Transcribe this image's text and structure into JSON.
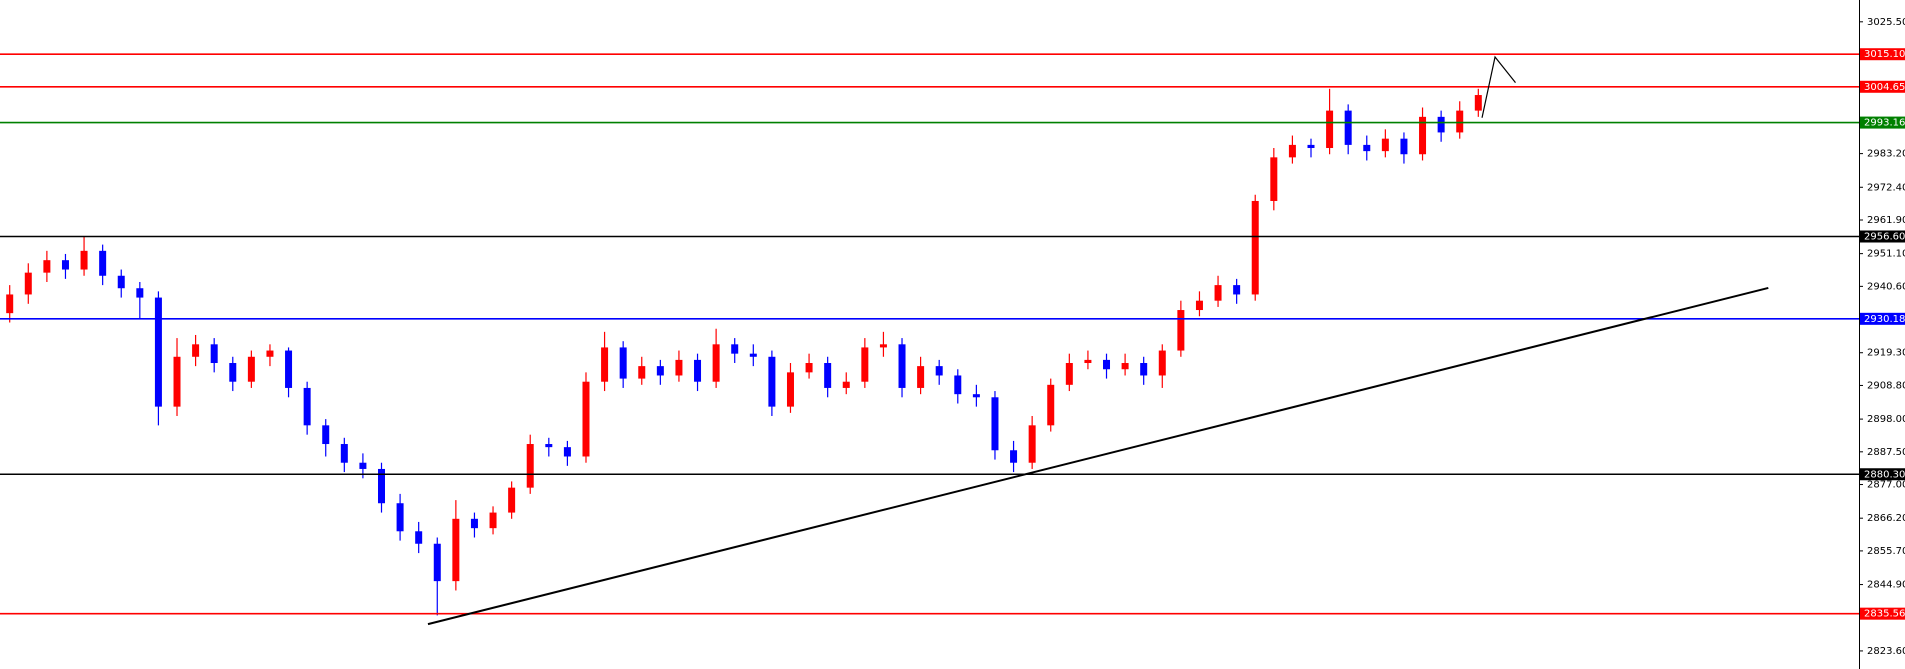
{
  "chart_data": {
    "type": "candlestick",
    "up_color": "#ff0000",
    "down_color": "#0000ff",
    "ylim": [
      2817.8,
      3032.5
    ],
    "yticks": [
      {
        "value": 3025.5,
        "label": "3025.50"
      },
      {
        "value": 2983.2,
        "label": "2983.20"
      },
      {
        "value": 2972.4,
        "label": "2972.40"
      },
      {
        "value": 2961.9,
        "label": "2961.90"
      },
      {
        "value": 2951.1,
        "label": "2951.10"
      },
      {
        "value": 2940.6,
        "label": "2940.60"
      },
      {
        "value": 2919.3,
        "label": "2919.30"
      },
      {
        "value": 2908.8,
        "label": "2908.80"
      },
      {
        "value": 2898,
        "label": "2898.00"
      },
      {
        "value": 2887.5,
        "label": "2887.50"
      },
      {
        "value": 2877,
        "label": "2877.00"
      },
      {
        "value": 2866.2,
        "label": "2866.20"
      },
      {
        "value": 2855.7,
        "label": "2855.70"
      },
      {
        "value": 2844.9,
        "label": "2844.90"
      },
      {
        "value": 2823.6,
        "label": "2823.60"
      }
    ],
    "levels": [
      {
        "value": 3015.1,
        "label": "3015.10",
        "color": "#ff0000"
      },
      {
        "value": 3004.65,
        "label": "3004.65",
        "color": "#ff0000"
      },
      {
        "value": 2993.16,
        "label": "2993.16",
        "color": "#008000"
      },
      {
        "value": 2956.6,
        "label": "2956.60",
        "color": "#000000"
      },
      {
        "value": 2930.18,
        "label": "2930.18",
        "color": "#0000ff"
      },
      {
        "value": 2880.3,
        "label": "2880.30",
        "color": "#000000"
      },
      {
        "value": 2835.56,
        "label": "2835.56",
        "color": "#ff0000"
      }
    ],
    "open": [
      2932,
      2938,
      2945,
      2949,
      2946,
      2952,
      2944,
      2940,
      2937,
      2902,
      2918,
      2922,
      2916,
      2910,
      2918,
      2920,
      2908,
      2896,
      2890,
      2884,
      2882,
      2871,
      2862,
      2858,
      2846,
      2866,
      2863,
      2868,
      2876,
      2890,
      2889,
      2886,
      2910,
      2921,
      2911,
      2915,
      2912,
      2917,
      2910,
      2922,
      2919,
      2918,
      2902,
      2913,
      2916,
      2908,
      2910,
      2921,
      2922,
      2908,
      2915,
      2912,
      2906,
      2905,
      2888,
      2884,
      2896,
      2909,
      2916,
      2917,
      2914,
      2916,
      2912,
      2920,
      2933,
      2936,
      2941,
      2938,
      2968,
      2982,
      2986,
      2985,
      2997,
      2986,
      2984,
      2988,
      2983,
      2995,
      2990,
      2997
    ],
    "high": [
      2941,
      2948,
      2952,
      2951,
      2956.6,
      2954,
      2946,
      2942,
      2939,
      2924,
      2925,
      2924,
      2918,
      2920,
      2922,
      2921,
      2910,
      2898,
      2892,
      2887,
      2884,
      2874,
      2865,
      2860,
      2872,
      2868,
      2870,
      2878,
      2893,
      2892,
      2891,
      2913,
      2926,
      2923,
      2918,
      2917,
      2920,
      2919,
      2927,
      2924,
      2922,
      2920,
      2916,
      2919,
      2918,
      2913,
      2924,
      2926,
      2924,
      2918,
      2917,
      2914,
      2909,
      2907,
      2891,
      2899,
      2911,
      2919,
      2920,
      2919,
      2919,
      2918,
      2922,
      2936,
      2939,
      2944,
      2943,
      2970,
      2985,
      2989,
      2988,
      3004,
      2999,
      2989,
      2991,
      2990,
      2998,
      2997,
      3000,
      3004
    ],
    "low": [
      2929,
      2935,
      2942,
      2943,
      2944,
      2941,
      2937,
      2930,
      2896,
      2899,
      2915,
      2913,
      2907,
      2908,
      2915,
      2905,
      2893,
      2886,
      2881,
      2879,
      2868,
      2859,
      2855,
      2835,
      2843,
      2860,
      2861,
      2866,
      2874,
      2886,
      2883,
      2884,
      2907,
      2908,
      2909,
      2909,
      2910,
      2907,
      2908,
      2916,
      2915,
      2899,
      2900,
      2911,
      2905,
      2906,
      2908,
      2918,
      2905,
      2906,
      2909,
      2903,
      2902,
      2885,
      2881,
      2882,
      2894,
      2907,
      2914,
      2911,
      2912,
      2909,
      2908,
      2918,
      2931,
      2934,
      2935,
      2936,
      2965,
      2980,
      2982,
      2983,
      2983,
      2981,
      2982,
      2980,
      2981,
      2987,
      2988,
      2995
    ],
    "close": [
      2938,
      2945,
      2949,
      2946,
      2952,
      2944,
      2940,
      2937,
      2902,
      2918,
      2922,
      2916,
      2910,
      2918,
      2920,
      2908,
      2896,
      2890,
      2884,
      2882,
      2871,
      2862,
      2858,
      2846,
      2866,
      2863,
      2868,
      2876,
      2890,
      2889,
      2886,
      2910,
      2921,
      2911,
      2915,
      2912,
      2917,
      2910,
      2922,
      2919,
      2918,
      2902,
      2913,
      2916,
      2908,
      2910,
      2921,
      2922,
      2908,
      2915,
      2912,
      2906,
      2905,
      2888,
      2884,
      2896,
      2909,
      2916,
      2917,
      2914,
      2916,
      2912,
      2920,
      2933,
      2936,
      2941,
      2938,
      2968,
      2982,
      2986,
      2985,
      2997,
      2986,
      2984,
      2988,
      2983,
      2995,
      2990,
      2997,
      3002
    ],
    "trendline": {
      "x": [
        22.5,
        94.6
      ],
      "y": [
        2832.2,
        2940.1
      ]
    },
    "projection": {
      "x": [
        79.2,
        79.9,
        81
      ],
      "y": [
        2994.7,
        3014.2,
        3006
      ]
    }
  }
}
